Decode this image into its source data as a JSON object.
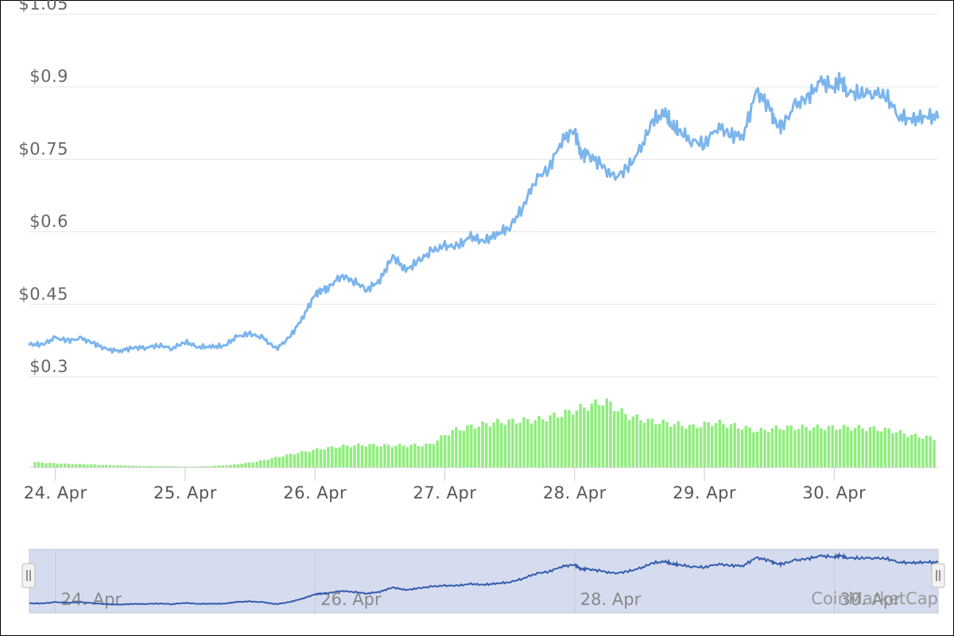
{
  "chart_data": {
    "type": "line",
    "title": "",
    "xlabel": "",
    "ylabel": "",
    "x_tick_labels": [
      "24. Apr",
      "25. Apr",
      "26. Apr",
      "27. Apr",
      "28. Apr",
      "29. Apr",
      "30. Apr"
    ],
    "y_tick_labels": [
      "$1.05",
      "$0.9",
      "$0.75",
      "$0.6",
      "$0.45",
      "$0.3"
    ],
    "y_ticks": [
      1.05,
      0.9,
      0.75,
      0.6,
      0.45,
      0.3
    ],
    "ylim": [
      0.3,
      1.05
    ],
    "xlim_days": [
      23.8,
      30.8
    ],
    "grid": true,
    "colors": {
      "price": "#7cb5ec",
      "volume": "#90ed7d",
      "navigator_line": "#335cad",
      "navigator_fill": "#d6dcef"
    },
    "series": [
      {
        "role": "price",
        "x": [
          23.8,
          23.9,
          24.0,
          24.1,
          24.2,
          24.3,
          24.4,
          24.5,
          24.6,
          24.7,
          24.8,
          24.9,
          25.0,
          25.1,
          25.2,
          25.3,
          25.4,
          25.5,
          25.6,
          25.7,
          25.8,
          25.9,
          26.0,
          26.05,
          26.1,
          26.2,
          26.3,
          26.4,
          26.5,
          26.6,
          26.7,
          26.8,
          26.9,
          27.0,
          27.1,
          27.2,
          27.3,
          27.4,
          27.5,
          27.6,
          27.7,
          27.8,
          27.9,
          28.0,
          28.05,
          28.1,
          28.2,
          28.3,
          28.4,
          28.5,
          28.6,
          28.7,
          28.75,
          28.8,
          28.9,
          29.0,
          29.1,
          29.2,
          29.3,
          29.4,
          29.5,
          29.55,
          29.6,
          29.7,
          29.8,
          29.9,
          30.0,
          30.05,
          30.1,
          30.2,
          30.3,
          30.4,
          30.5,
          30.6,
          30.7,
          30.8
        ],
        "values": [
          0.367,
          0.367,
          0.38,
          0.375,
          0.379,
          0.369,
          0.356,
          0.354,
          0.36,
          0.361,
          0.365,
          0.359,
          0.372,
          0.362,
          0.362,
          0.364,
          0.383,
          0.389,
          0.38,
          0.358,
          0.38,
          0.42,
          0.47,
          0.48,
          0.483,
          0.51,
          0.498,
          0.48,
          0.5,
          0.55,
          0.52,
          0.54,
          0.56,
          0.57,
          0.57,
          0.59,
          0.58,
          0.595,
          0.61,
          0.65,
          0.71,
          0.73,
          0.79,
          0.81,
          0.76,
          0.76,
          0.74,
          0.71,
          0.73,
          0.765,
          0.83,
          0.845,
          0.82,
          0.81,
          0.79,
          0.78,
          0.82,
          0.8,
          0.8,
          0.89,
          0.86,
          0.82,
          0.82,
          0.86,
          0.88,
          0.91,
          0.9,
          0.915,
          0.89,
          0.885,
          0.89,
          0.88,
          0.84,
          0.83,
          0.84,
          0.836
        ]
      }
    ],
    "volume_relative": [
      0.08,
      0.06,
      0.05,
      0.04,
      0.03,
      0.02,
      0.02,
      0.01,
      0.02,
      0.04,
      0.08,
      0.15,
      0.22,
      0.28,
      0.32,
      0.34,
      0.33,
      0.33,
      0.34,
      0.55,
      0.62,
      0.68,
      0.7,
      0.72,
      0.8,
      0.9,
      1.0,
      0.78,
      0.7,
      0.66,
      0.61,
      0.68,
      0.62,
      0.55,
      0.6,
      0.6,
      0.6,
      0.6,
      0.59,
      0.56,
      0.48,
      0.44
    ],
    "credit": "CoinMarketCap"
  }
}
